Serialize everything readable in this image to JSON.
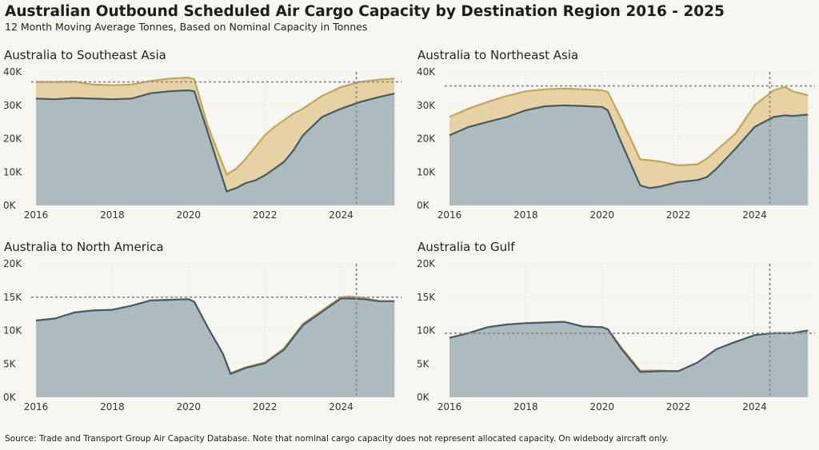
{
  "title": "Australian Outbound Scheduled Air Cargo Capacity by Destination Region 2016 - 2025",
  "subtitle": "12 Month Moving Average Tonnes, Based on Nominal Capacity in Tonnes",
  "source": "Source: Trade and Transport Group Air Capacity Database. Note that nominal cargo capacity does not represent allocated capacity. On widebody aircraft only.",
  "colors": {
    "gold": "#c8a44e",
    "gold_fill": "#e6d2a4",
    "slate": "#3e5c69",
    "slate_fill": "#adbbbe",
    "ref": "#8a8a8a",
    "grid": "#d8d8d8"
  },
  "chart_data": [
    {
      "type": "area",
      "title": "Australia to Southeast Asia",
      "xlim": [
        2016,
        2025.5
      ],
      "x_ticks": [
        2016,
        2018,
        2020,
        2022,
        2024
      ],
      "x_tick_labels": [
        "2016",
        "2018",
        "2020",
        "2022",
        "2024"
      ],
      "ylim": [
        0,
        40000
      ],
      "y_ticks": [
        0,
        10000,
        20000,
        30000,
        40000
      ],
      "y_tick_labels": [
        "0K",
        "10K",
        "20K",
        "30K",
        "40K"
      ],
      "reference_line_y": 37000,
      "reference_line_x": 2024.4,
      "series": [
        {
          "x": [
            2016,
            2016.5,
            2017,
            2017.5,
            2018,
            2018.5,
            2019,
            2019.5,
            2020,
            2020.15,
            2020.5,
            2021,
            2021.25,
            2021.5,
            2021.75,
            2022,
            2022.25,
            2022.5,
            2022.75,
            2023,
            2023.5,
            2024,
            2024.5,
            2025,
            2025.4
          ],
          "values": [
            37000,
            37000,
            37100,
            36200,
            36000,
            36200,
            37300,
            38000,
            38300,
            37800,
            24000,
            9200,
            11000,
            14000,
            17500,
            21000,
            23500,
            25500,
            27500,
            29000,
            32800,
            35500,
            37000,
            37700,
            38000
          ]
        },
        {
          "x": [
            2016,
            2016.5,
            2017,
            2017.5,
            2018,
            2018.5,
            2019,
            2019.5,
            2020,
            2020.15,
            2020.5,
            2021,
            2021.25,
            2021.5,
            2021.75,
            2022,
            2022.25,
            2022.5,
            2022.75,
            2023,
            2023.5,
            2024,
            2024.5,
            2025,
            2025.4
          ],
          "values": [
            32000,
            31800,
            32200,
            32000,
            31800,
            32000,
            33600,
            34200,
            34500,
            34200,
            22000,
            4200,
            5200,
            6700,
            7500,
            9000,
            11000,
            13000,
            16500,
            21000,
            26500,
            29000,
            31000,
            32500,
            33500
          ]
        }
      ]
    },
    {
      "type": "area",
      "title": "Australia to Northeast Asia",
      "xlim": [
        2016,
        2025.5
      ],
      "x_ticks": [
        2016,
        2018,
        2020,
        2022,
        2024
      ],
      "x_tick_labels": [
        "2016",
        "2018",
        "2020",
        "2022",
        "2024"
      ],
      "ylim": [
        0,
        40000
      ],
      "y_ticks": [
        0,
        10000,
        20000,
        30000,
        40000
      ],
      "y_tick_labels": [
        "0K",
        "10K",
        "20K",
        "30K",
        "40K"
      ],
      "reference_line_y": 35800,
      "reference_line_x": 2024.4,
      "series": [
        {
          "x": [
            2016,
            2016.5,
            2017,
            2017.5,
            2018,
            2018.5,
            2019,
            2019.5,
            2020,
            2020.15,
            2020.5,
            2021,
            2021.5,
            2022,
            2022.5,
            2022.75,
            2023,
            2023.5,
            2024,
            2024.5,
            2024.8,
            2025,
            2025.4
          ],
          "values": [
            26500,
            29000,
            31000,
            32800,
            34200,
            34800,
            35000,
            34800,
            34500,
            34000,
            26000,
            13800,
            13200,
            12000,
            12300,
            14000,
            16500,
            21500,
            30000,
            34500,
            35500,
            34200,
            33000
          ]
        },
        {
          "x": [
            2016,
            2016.5,
            2017,
            2017.5,
            2018,
            2018.5,
            2019,
            2019.5,
            2020,
            2020.15,
            2020.5,
            2021,
            2021.25,
            2021.5,
            2022,
            2022.5,
            2022.75,
            2023,
            2023.5,
            2024,
            2024.5,
            2024.8,
            2025,
            2025.4
          ],
          "values": [
            21000,
            23500,
            25000,
            26500,
            28500,
            29700,
            30000,
            29800,
            29500,
            28500,
            19000,
            6000,
            5200,
            5600,
            7000,
            7600,
            8500,
            11000,
            17000,
            23500,
            26500,
            27000,
            26800,
            27200
          ]
        }
      ]
    },
    {
      "type": "area",
      "title": "Australia to North America",
      "xlim": [
        2016,
        2025.5
      ],
      "x_ticks": [
        2016,
        2018,
        2020,
        2022,
        2024
      ],
      "x_tick_labels": [
        "2016",
        "2018",
        "2020",
        "2022",
        "2024"
      ],
      "ylim": [
        0,
        20000
      ],
      "y_ticks": [
        0,
        5000,
        10000,
        15000,
        20000
      ],
      "y_tick_labels": [
        "0K",
        "5K",
        "10K",
        "15K",
        "20K"
      ],
      "reference_line_y": 15000,
      "reference_line_x": 2024.4,
      "series": [
        {
          "x": [
            2016,
            2016.5,
            2017,
            2017.5,
            2018,
            2018.5,
            2019,
            2019.5,
            2020,
            2020.15,
            2020.5,
            2020.9,
            2021.1,
            2021.5,
            2022,
            2022.5,
            2023,
            2023.5,
            2024,
            2024.2,
            2024.6,
            2025,
            2025.4
          ],
          "values": [
            11500,
            11800,
            12700,
            13000,
            13100,
            13700,
            14500,
            14600,
            14700,
            14300,
            10500,
            6500,
            3600,
            4500,
            5200,
            7300,
            11000,
            13000,
            15000,
            15100,
            14900,
            14400,
            14400
          ]
        },
        {
          "x": [
            2016,
            2016.5,
            2017,
            2017.5,
            2018,
            2018.5,
            2019,
            2019.5,
            2020,
            2020.15,
            2020.5,
            2020.9,
            2021.1,
            2021.5,
            2022,
            2022.5,
            2023,
            2023.5,
            2024,
            2024.2,
            2024.6,
            2025,
            2025.4
          ],
          "values": [
            11500,
            11800,
            12700,
            13000,
            13100,
            13700,
            14500,
            14600,
            14700,
            14300,
            10500,
            6500,
            3500,
            4400,
            5100,
            7100,
            10800,
            12800,
            14800,
            14800,
            14700,
            14400,
            14400
          ]
        }
      ]
    },
    {
      "type": "area",
      "title": "Australia to Gulf",
      "xlim": [
        2016,
        2025.5
      ],
      "x_ticks": [
        2016,
        2018,
        2020,
        2022,
        2024
      ],
      "x_tick_labels": [
        "2016",
        "2018",
        "2020",
        "2022",
        "2024"
      ],
      "ylim": [
        0,
        20000
      ],
      "y_ticks": [
        0,
        5000,
        10000,
        15000,
        20000
      ],
      "y_tick_labels": [
        "0K",
        "5K",
        "10K",
        "15K",
        "20K"
      ],
      "reference_line_y": 9600,
      "reference_line_x": 2024.4,
      "series": [
        {
          "x": [
            2016,
            2016.5,
            2017,
            2017.5,
            2018,
            2018.5,
            2019,
            2019.5,
            2020,
            2020.15,
            2020.5,
            2021,
            2021.5,
            2022,
            2022.5,
            2023,
            2023.5,
            2024,
            2024.5,
            2025,
            2025.4
          ],
          "values": [
            8900,
            9600,
            10500,
            10900,
            11100,
            11200,
            11300,
            10600,
            10500,
            10200,
            7500,
            4000,
            4000,
            3900,
            5000,
            6900,
            8000,
            9000,
            9600,
            9600,
            10000
          ]
        },
        {
          "x": [
            2016,
            2016.5,
            2017,
            2017.5,
            2018,
            2018.5,
            2019,
            2019.5,
            2020,
            2020.15,
            2020.5,
            2021,
            2021.5,
            2022,
            2022.5,
            2023,
            2023.5,
            2024,
            2024.5,
            2025,
            2025.4
          ],
          "values": [
            8900,
            9600,
            10500,
            10900,
            11100,
            11200,
            11300,
            10600,
            10500,
            10200,
            7300,
            3800,
            3900,
            3900,
            5200,
            7200,
            8300,
            9300,
            9600,
            9600,
            10000
          ]
        }
      ]
    }
  ]
}
